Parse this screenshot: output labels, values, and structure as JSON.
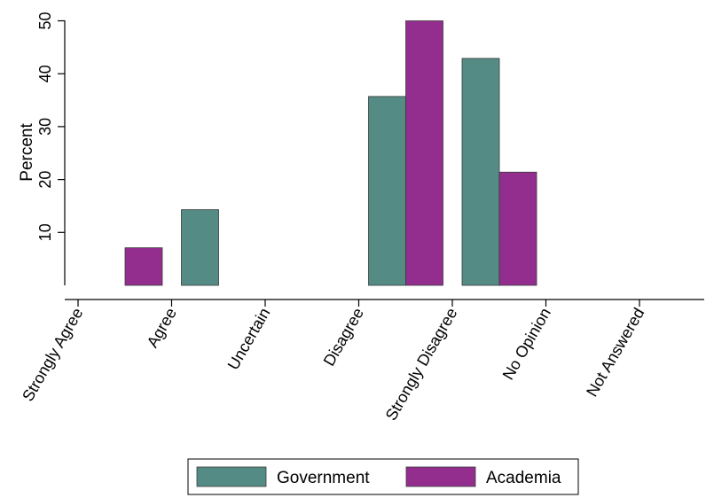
{
  "chart_data": {
    "type": "bar",
    "ylabel": "Percent",
    "ylim": [
      0,
      50
    ],
    "yticks": [
      10,
      20,
      30,
      40,
      50
    ],
    "categories": [
      "Strongly Agree",
      "Agree",
      "Uncertain",
      "Disagree",
      "Strongly Disagree",
      "No Opinion",
      "Not Answered"
    ],
    "series": [
      {
        "name": "Government",
        "color": "#548b84",
        "values": [
          0,
          14.3,
          0,
          35.7,
          42.9,
          0,
          0
        ]
      },
      {
        "name": "Academia",
        "color": "#932e8f",
        "values": [
          7.1,
          0,
          0,
          50.0,
          21.4,
          0,
          0
        ]
      }
    ],
    "legend_position": "bottom"
  }
}
